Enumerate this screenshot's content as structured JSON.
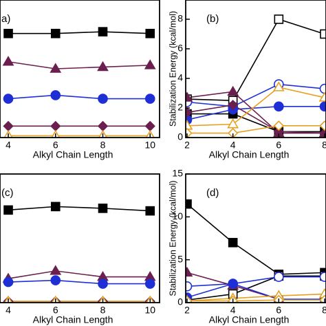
{
  "chart_data": [
    {
      "type": "line",
      "panel_label": "a)",
      "xlabel": "Alkyl Chain Length",
      "x": [
        4,
        6,
        8,
        10
      ],
      "xlim": [
        3.65,
        10.4
      ],
      "xticks": [
        4,
        6,
        8,
        10
      ],
      "ylim": [
        0,
        7.8
      ],
      "series": [
        {
          "color": "#000000",
          "marker": "square",
          "filled": true,
          "values": [
            5.9,
            5.9,
            6.0,
            5.9
          ]
        },
        {
          "color": "#6b1f4f",
          "marker": "triangle",
          "filled": true,
          "values": [
            4.3,
            3.9,
            4.0,
            4.1
          ]
        },
        {
          "color": "#1f2fd6",
          "marker": "circle",
          "filled": true,
          "values": [
            2.2,
            2.4,
            2.2,
            2.2
          ]
        },
        {
          "color": "#6b1f4f",
          "marker": "diamond",
          "filled": true,
          "values": [
            0.65,
            0.65,
            0.65,
            0.65
          ]
        },
        {
          "color": "#e6a020",
          "marker": "triangle",
          "filled": false,
          "values": [
            0.1,
            0.1,
            0.1,
            0.1
          ]
        }
      ]
    },
    {
      "type": "line",
      "panel_label": "(b)",
      "xlabel": "Alkyl Chain Length",
      "ylabel": "Stabilization Energy (kcal/mol)",
      "x": [
        2,
        4,
        6,
        8
      ],
      "xlim": [
        1.94,
        8.06
      ],
      "xticks": [
        2,
        4,
        6,
        8
      ],
      "ylim": [
        0,
        9.3
      ],
      "yticks": [
        0,
        2,
        4,
        6,
        8
      ],
      "series": [
        {
          "color": "#000000",
          "marker": "square",
          "filled": false,
          "values": [
            2.6,
            2.5,
            8,
            7
          ]
        },
        {
          "color": "#000000",
          "marker": "square",
          "filled": true,
          "values": [
            1.6,
            1.6,
            0.4,
            0.4
          ]
        },
        {
          "color": "#1f2fd6",
          "marker": "circle",
          "filled": false,
          "values": [
            2.4,
            2.1,
            3.6,
            3.3
          ]
        },
        {
          "color": "#1f2fd6",
          "marker": "circle",
          "filled": true,
          "values": [
            1.2,
            1.9,
            2.1,
            2.1
          ]
        },
        {
          "color": "#6b1f4f",
          "marker": "triangle",
          "filled": true,
          "values": [
            2.7,
            3.1,
            0.3,
            0.3
          ]
        },
        {
          "color": "#6b1f4f",
          "marker": "diamond",
          "filled": true,
          "values": [
            1.7,
            2.2,
            0.4,
            0.3
          ]
        },
        {
          "color": "#e6a020",
          "marker": "triangle",
          "filled": false,
          "values": [
            0.8,
            0.9,
            3.4,
            2.7
          ]
        },
        {
          "color": "#e6a020",
          "marker": "diamond",
          "filled": false,
          "values": [
            0.3,
            0.3,
            0.8,
            0.8
          ]
        }
      ]
    },
    {
      "type": "line",
      "panel_label": "(c)",
      "xlabel": "Alkyl Chain Length",
      "x": [
        4,
        6,
        8,
        10
      ],
      "xlim": [
        3.65,
        10.4
      ],
      "xticks": [
        4,
        6,
        8,
        10
      ],
      "ylim": [
        0,
        15
      ],
      "series": [
        {
          "color": "#000000",
          "marker": "square",
          "filled": true,
          "values": [
            10.8,
            11.2,
            11.0,
            10.7
          ]
        },
        {
          "color": "#6b1f4f",
          "marker": "triangle",
          "filled": true,
          "values": [
            2.8,
            3.7,
            3.0,
            3.0
          ]
        },
        {
          "color": "#1f2fd6",
          "marker": "circle",
          "filled": true,
          "values": [
            2.4,
            2.6,
            2.2,
            2.2
          ]
        },
        {
          "color": "#6b1f4f",
          "marker": "diamond",
          "filled": true,
          "values": [
            0.15,
            0.15,
            0.15,
            0.15
          ]
        },
        {
          "color": "#e6a020",
          "marker": "triangle",
          "filled": false,
          "values": [
            0.15,
            0.15,
            0.15,
            0.15
          ]
        }
      ]
    },
    {
      "type": "line",
      "panel_label": "(d)",
      "xlabel": "Alkyl Chain Length",
      "ylabel": "Stabilization Energy (kcal/mol)",
      "x": [
        2,
        4,
        6,
        8
      ],
      "xlim": [
        1.94,
        8.06
      ],
      "xticks": [
        2,
        4,
        6,
        8
      ],
      "ylim": [
        0,
        15
      ],
      "yticks": [
        0,
        5,
        10,
        15
      ],
      "series": [
        {
          "color": "#000000",
          "marker": "square",
          "filled": true,
          "values": [
            11.5,
            7.0,
            3.3,
            3.5
          ]
        },
        {
          "color": "#000000",
          "marker": "square",
          "filled": false,
          "values": [
            0.3,
            1.0,
            3.1,
            3.1
          ]
        },
        {
          "color": "#1f2fd6",
          "marker": "circle",
          "filled": false,
          "values": [
            1.9,
            2.2,
            3.0,
            3.0
          ]
        },
        {
          "color": "#6b1f4f",
          "marker": "triangle",
          "filled": true,
          "values": [
            3.5,
            2.0,
            0.4,
            0.3
          ]
        },
        {
          "color": "#1f2fd6",
          "marker": "circle",
          "filled": true,
          "values": [
            0.6,
            2.2,
            0.4,
            0.4
          ]
        },
        {
          "color": "#e6a020",
          "marker": "triangle",
          "filled": false,
          "values": [
            0.2,
            0.5,
            0.8,
            1.0
          ]
        },
        {
          "color": "#e6a020",
          "marker": "diamond",
          "filled": false,
          "values": [
            0.2,
            0.2,
            0.3,
            0.3
          ]
        }
      ]
    }
  ]
}
